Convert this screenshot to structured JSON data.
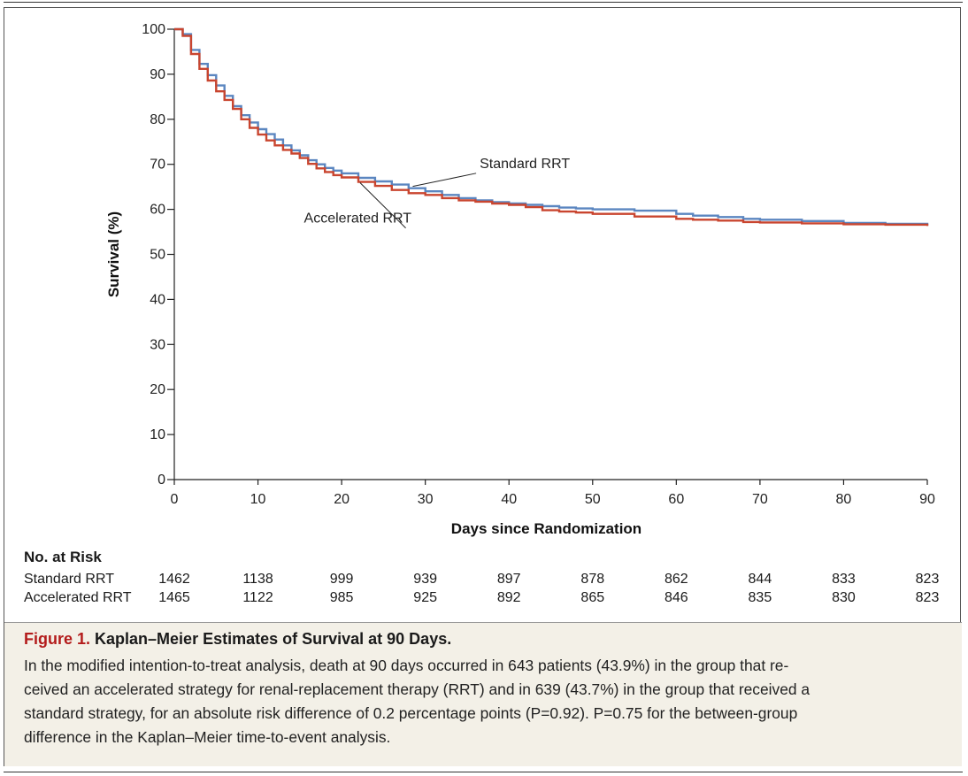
{
  "chart_data": {
    "type": "line",
    "title": "",
    "xlabel": "Days since Randomization",
    "ylabel": "Survival (%)",
    "xlim": [
      0,
      90
    ],
    "ylim": [
      0,
      100
    ],
    "x_ticks": [
      0,
      10,
      20,
      30,
      40,
      50,
      60,
      70,
      80,
      90
    ],
    "y_ticks": [
      0,
      10,
      20,
      30,
      40,
      50,
      60,
      70,
      80,
      90,
      100
    ],
    "grid": false,
    "legend": "inline labels",
    "series": [
      {
        "name": "Standard RRT",
        "color": "#5b86c0",
        "x": [
          0,
          1,
          2,
          3,
          4,
          5,
          6,
          7,
          8,
          9,
          10,
          11,
          12,
          13,
          14,
          15,
          16,
          17,
          18,
          19,
          20,
          22,
          24,
          26,
          28,
          30,
          32,
          34,
          36,
          38,
          40,
          42,
          44,
          46,
          48,
          50,
          55,
          60,
          62,
          65,
          68,
          70,
          75,
          80,
          85,
          90
        ],
        "y": [
          100,
          98.9,
          95.4,
          92.3,
          89.8,
          87.5,
          85.2,
          82.9,
          80.9,
          79.3,
          77.8,
          76.7,
          75.5,
          74.2,
          73.1,
          72.0,
          70.9,
          70.0,
          69.2,
          68.6,
          68.0,
          67.0,
          66.2,
          65.5,
          64.7,
          64.0,
          63.2,
          62.5,
          62.0,
          61.6,
          61.3,
          61.0,
          60.7,
          60.4,
          60.2,
          60.0,
          59.7,
          59.0,
          58.6,
          58.3,
          57.9,
          57.7,
          57.4,
          57.0,
          56.8,
          56.4
        ]
      },
      {
        "name": "Accelerated RRT",
        "color": "#c9452f",
        "x": [
          0,
          1,
          2,
          3,
          4,
          5,
          6,
          7,
          8,
          9,
          10,
          11,
          12,
          13,
          14,
          15,
          16,
          17,
          18,
          19,
          20,
          22,
          24,
          26,
          28,
          30,
          32,
          34,
          36,
          38,
          40,
          42,
          44,
          46,
          48,
          50,
          55,
          60,
          62,
          65,
          68,
          70,
          75,
          80,
          85,
          90
        ],
        "y": [
          100,
          98.5,
          94.5,
          91.2,
          88.6,
          86.2,
          84.3,
          82.3,
          80.0,
          78.1,
          76.6,
          75.3,
          74.2,
          73.2,
          72.4,
          71.4,
          70.1,
          69.1,
          68.3,
          67.6,
          67.1,
          66.1,
          65.2,
          64.3,
          63.6,
          63.2,
          62.5,
          62.0,
          61.7,
          61.3,
          61.0,
          60.5,
          59.8,
          59.5,
          59.3,
          59.0,
          58.4,
          57.9,
          57.7,
          57.5,
          57.2,
          57.1,
          56.9,
          56.7,
          56.6,
          56.3
        ]
      }
    ],
    "annotations": [
      {
        "text": "Standard RRT",
        "x": 36.5,
        "y": 68.8,
        "arrow_to": [
          28.5,
          64.7
        ]
      },
      {
        "text": "Accelerated RRT",
        "x": 15.5,
        "y": 58.6,
        "arrow_to": [
          22.2,
          66.3
        ]
      }
    ]
  },
  "risk_table": {
    "title": "No. at Risk",
    "days": [
      0,
      10,
      20,
      30,
      40,
      50,
      60,
      70,
      80,
      90
    ],
    "rows": [
      {
        "label": "Standard RRT",
        "values": [
          "1462",
          "1138",
          "999",
          "939",
          "897",
          "878",
          "862",
          "844",
          "833",
          "823"
        ]
      },
      {
        "label": "Accelerated RRT",
        "values": [
          "1465",
          "1122",
          "985",
          "925",
          "892",
          "865",
          "846",
          "835",
          "830",
          "823"
        ]
      }
    ]
  },
  "caption": {
    "figure_label": "Figure 1.",
    "title": "Kaplan–Meier Estimates of Survival at 90 Days.",
    "lines": [
      "In the modified intention-to-treat analysis, death at 90 days occurred in 643 patients (43.9%) in the group that re-",
      "ceived an accelerated strategy for renal-replacement therapy (RRT) and in 639 (43.7%) in the group that received a",
      "standard strategy, for an absolute risk difference of 0.2 percentage points (P=0.92). P=0.75 for the between-group",
      "difference in the Kaplan–Meier time-to-event analysis."
    ]
  }
}
